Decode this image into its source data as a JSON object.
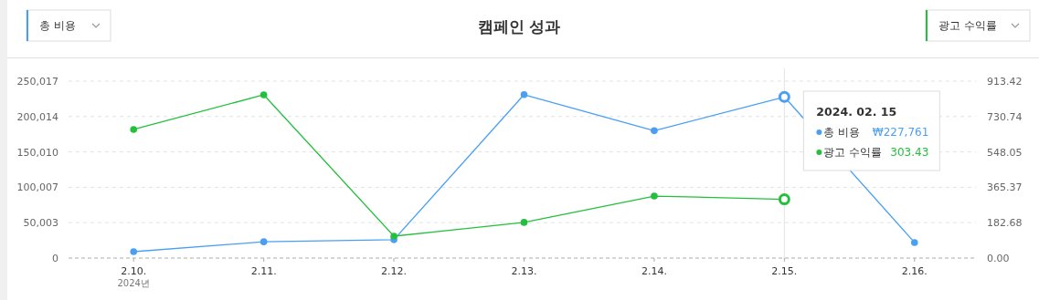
{
  "chart_data": {
    "type": "line",
    "title": "캠페인 성과",
    "categories": [
      "2.10.",
      "2.11.",
      "2.12.",
      "2.13.",
      "2.14.",
      "2.15.",
      "2.16."
    ],
    "series": [
      {
        "name": "총 비용",
        "color": "#4a9ff5",
        "values": [
          9000,
          23000,
          26000,
          231000,
          180000,
          227761,
          22000
        ]
      },
      {
        "name": "광고 수익률",
        "color": "#22c03c",
        "axis": "y2",
        "values": [
          664,
          843,
          113,
          184,
          320,
          303.43,
          null
        ]
      }
    ],
    "ylim": [
      0,
      250017
    ],
    "yticks": [
      {
        "value": 0,
        "label": "0"
      },
      {
        "value": 50003,
        "label": "50,003"
      },
      {
        "value": 100007,
        "label": "100,007"
      },
      {
        "value": 150010,
        "label": "150,010"
      },
      {
        "value": 200014,
        "label": "200,014"
      },
      {
        "value": 250017,
        "label": "250,017"
      }
    ],
    "y2lim": [
      0,
      913.42
    ],
    "y2ticks": [
      {
        "value": 0,
        "label": "0.00"
      },
      182.68,
      365.37,
      548.05,
      730.74,
      913.42
    ],
    "ref_lines": [
      {
        "axis": "x",
        "value": "2.15.",
        "color": "#e3e3e3"
      }
    ],
    "annotations": [
      "2024. 02. 15",
      "₩227,761",
      "303.43",
      "2024년"
    ],
    "grid": "y",
    "legend": "top",
    "marker": "circle",
    "line_style": "solid"
  }
}
